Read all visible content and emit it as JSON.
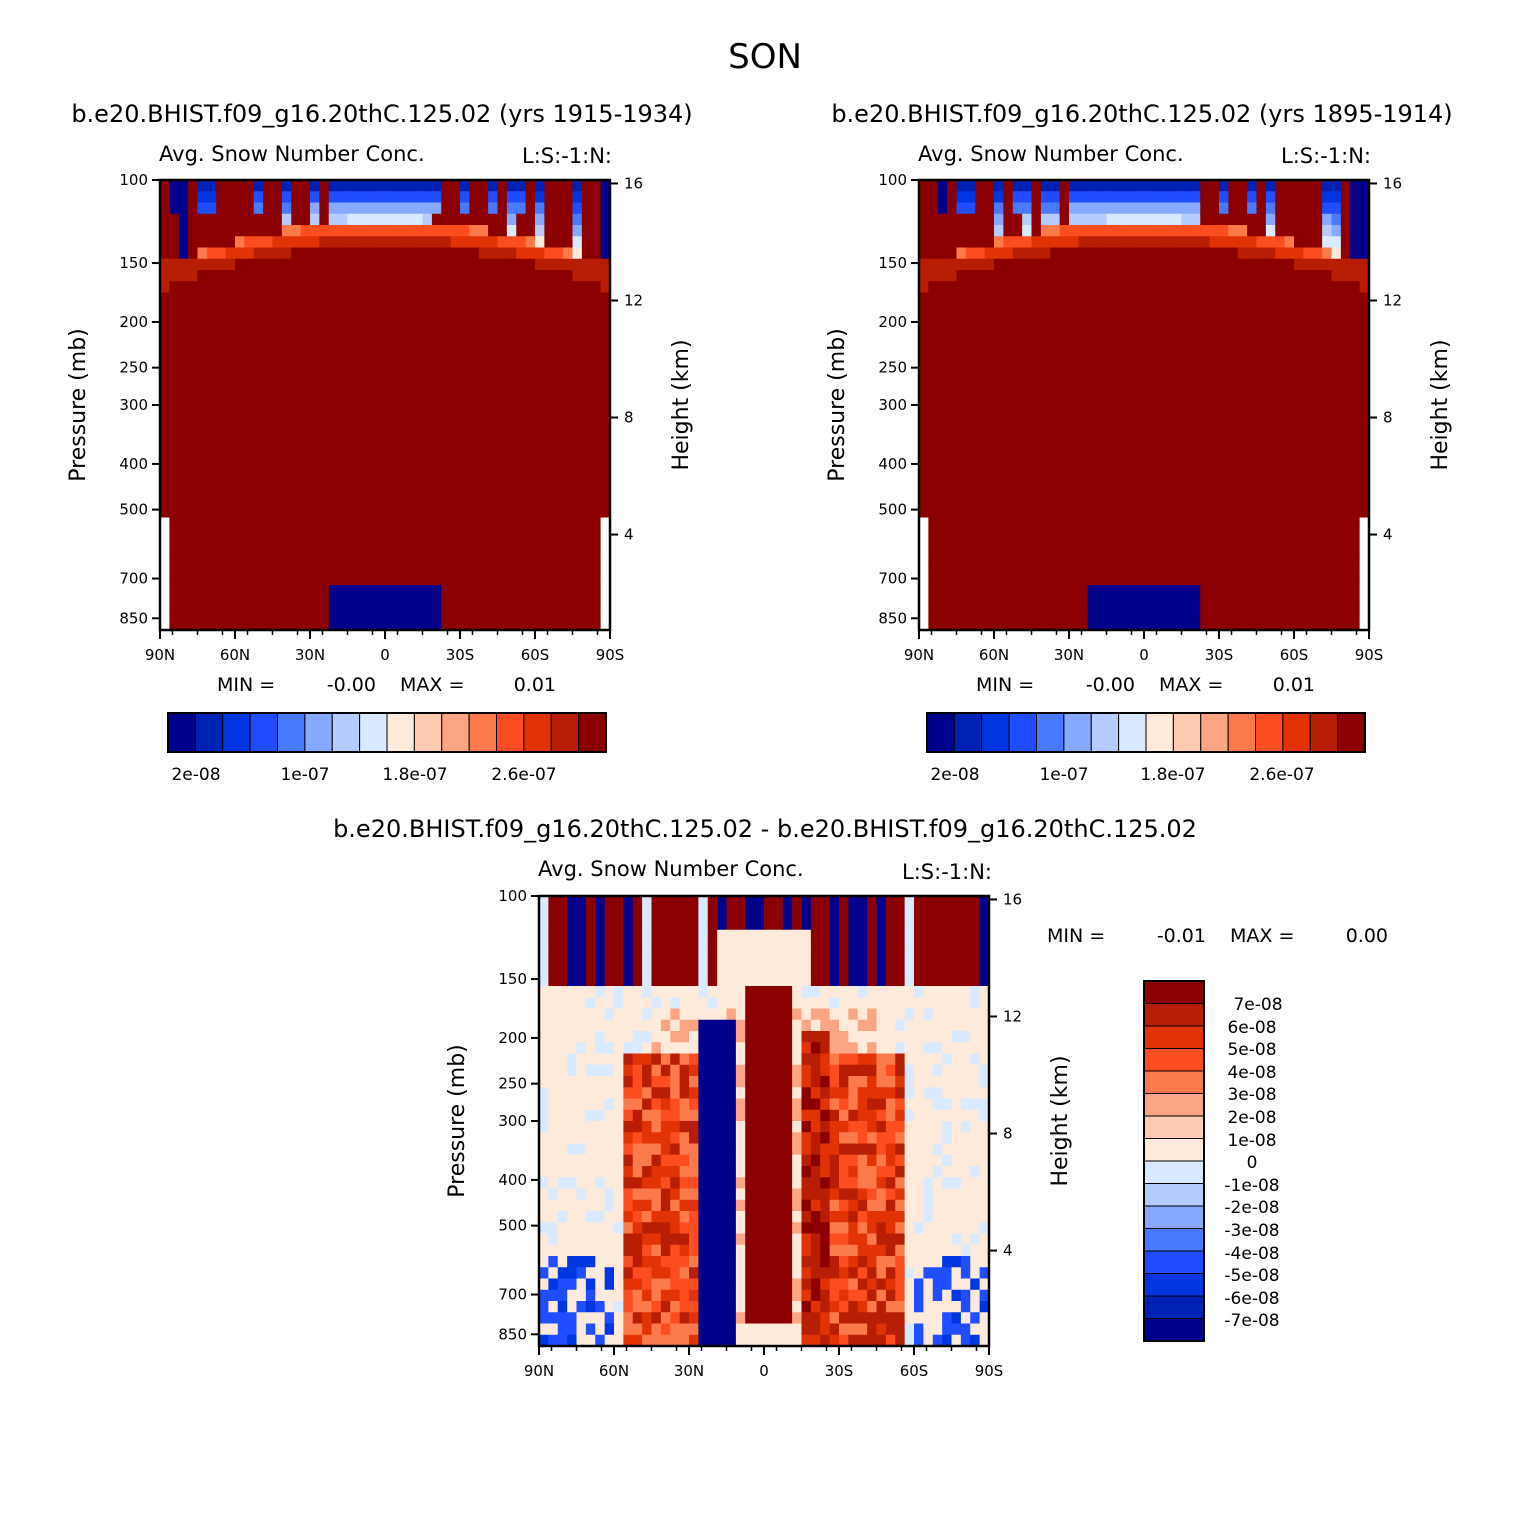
{
  "figure_title": "SON",
  "cb_colors": [
    "#00008b",
    "#0022b4",
    "#0036df",
    "#1f4dff",
    "#4879ff",
    "#87a9ff",
    "#b6ccff",
    "#d9eaff",
    "#fdeadb",
    "#fdcab2",
    "#fca585",
    "#fb7a4c",
    "#fb4d20",
    "#e13305",
    "#b81e05",
    "#8b0000"
  ],
  "diff_colors": [
    "#00008b",
    "#0022b4",
    "#0036df",
    "#1f4dff",
    "#4879ff",
    "#87a9ff",
    "#b6ccff",
    "#d9eaff",
    "#fdeadb",
    "#fdcab2",
    "#fca585",
    "#fb7a4c",
    "#fb4d20",
    "#e13305",
    "#b81e05",
    "#8b0000"
  ],
  "chart_data": [
    {
      "type": "heatmap",
      "case_title": "b.e20.BHIST.f09_g16.20thC.125.02 (yrs 1915-1934)",
      "variable_title": "Avg. Snow Number Conc.",
      "corner_label": "L:S:-1:N:",
      "ylabel": "Pressure (mb)",
      "right_ylabel": "Height (km)",
      "x_ticks": [
        "90N",
        "60N",
        "30N",
        "0",
        "30S",
        "60S",
        "90S"
      ],
      "y_ticks": [
        "100",
        "150",
        "200",
        "250",
        "300",
        "400",
        "500",
        "700",
        "850"
      ],
      "right_ticks": [
        "16",
        "12",
        "8",
        "4"
      ],
      "ylim": [
        100,
        1000
      ],
      "min_label": "MIN =",
      "min_value": "-0.00",
      "max_label": "MAX =",
      "max_value": "0.01",
      "colorbar_labels": [
        "2e-08",
        "1e-07",
        "1.8e-07",
        "2.6e-07"
      ]
    },
    {
      "type": "heatmap",
      "case_title": "b.e20.BHIST.f09_g16.20thC.125.02 (yrs 1895-1914)",
      "variable_title": "Avg. Snow Number Conc.",
      "corner_label": "L:S:-1:N:",
      "ylabel": "Pressure (mb)",
      "right_ylabel": "Height (km)",
      "x_ticks": [
        "90N",
        "60N",
        "30N",
        "0",
        "30S",
        "60S",
        "90S"
      ],
      "y_ticks": [
        "100",
        "150",
        "200",
        "250",
        "300",
        "400",
        "500",
        "700",
        "850"
      ],
      "right_ticks": [
        "16",
        "12",
        "8",
        "4"
      ],
      "ylim": [
        100,
        1000
      ],
      "min_label": "MIN =",
      "min_value": "-0.00",
      "max_label": "MAX =",
      "max_value": "0.01",
      "colorbar_labels": [
        "2e-08",
        "1e-07",
        "1.8e-07",
        "2.6e-07"
      ]
    },
    {
      "type": "heatmap",
      "case_title": "b.e20.BHIST.f09_g16.20thC.125.02 - b.e20.BHIST.f09_g16.20thC.125.02",
      "variable_title": "Avg. Snow Number Conc.",
      "corner_label": "L:S:-1:N:",
      "ylabel": "Pressure (mb)",
      "right_ylabel": "Height (km)",
      "x_ticks": [
        "90N",
        "60N",
        "30N",
        "0",
        "30S",
        "60S",
        "90S"
      ],
      "y_ticks": [
        "100",
        "150",
        "200",
        "250",
        "300",
        "400",
        "500",
        "700",
        "850"
      ],
      "right_ticks": [
        "16",
        "12",
        "8",
        "4"
      ],
      "ylim": [
        100,
        1000
      ],
      "min_label": "MIN =",
      "min_value": "-0.01",
      "max_label": "MAX =",
      "max_value": "0.00",
      "colorbar_labels": [
        "7e-08",
        "6e-08",
        "5e-08",
        "4e-08",
        "3e-08",
        "2e-08",
        "1e-08",
        "0",
        "-1e-08",
        "-2e-08",
        "-3e-08",
        "-4e-08",
        "-5e-08",
        "-6e-08",
        "-7e-08"
      ]
    }
  ]
}
